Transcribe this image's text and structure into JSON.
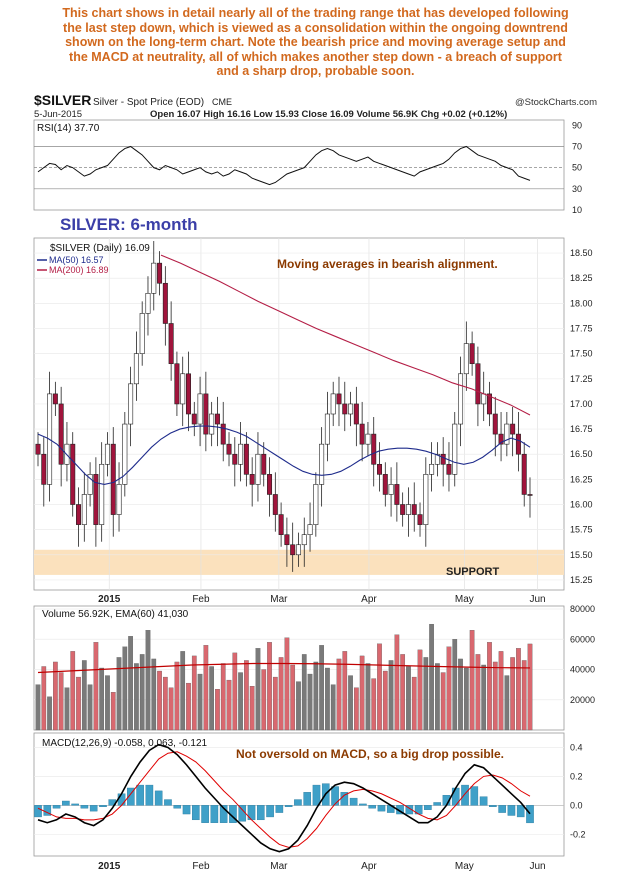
{
  "commentary": {
    "lines": [
      "This chart shows in detail nearly all of the trading range that has developed following",
      "the last step down, which is viewed as a consolidation within the ongoing downtrend",
      "shown on the long-term chart.  Note the bearish price and moving average setup and",
      "the MACD at neutrality, all of which makes another step down - a breach of support",
      "and a sharp drop, probable soon."
    ]
  },
  "header": {
    "symbol": "$SILVER",
    "name": "Silver - Spot Price (EOD)",
    "exchange": "CME",
    "source": "@StockCharts.com",
    "date": "5-Jun-2015",
    "quote": "Open 16.07  High 16.16  Low 15.93  Close 16.09  Volume 56.9K  Chg +0.02 (+0.12%)"
  },
  "annotations": {
    "title": "SILVER: 6-month",
    "ma_note": "Moving averages in bearish alignment.",
    "support": "SUPPORT",
    "macd_note": "Not oversold on MACD, so a big drop possible."
  },
  "colors": {
    "up": "#ffffff",
    "down": "#a0143c",
    "ma50": "#1f2c8c",
    "ma200": "#b41e46",
    "support": "#fbe1bd",
    "macd": "#000000",
    "signal": "#e00000",
    "histogram": "#3fa0c8",
    "vol_down": "#d9686f",
    "vol_up": "#7a7a7a",
    "ema": "#c00000",
    "title": "#3b3fa8",
    "note": "#8b3a00"
  },
  "chart_data": [
    {
      "type": "line",
      "title": "RSI(14) 37.70",
      "yticks": [
        10,
        30,
        50,
        70,
        90
      ],
      "ylim": [
        10,
        95
      ],
      "reference_lines": [
        30,
        50,
        70
      ],
      "series": [
        {
          "name": "RSI(14)",
          "values": [
            46,
            50,
            54,
            53,
            48,
            52,
            50,
            46,
            42,
            44,
            48,
            50,
            52,
            58,
            64,
            68,
            70,
            66,
            62,
            56,
            50,
            48,
            52,
            50,
            48,
            44,
            46,
            48,
            50,
            46,
            44,
            46,
            42,
            44,
            48,
            46,
            44,
            40,
            38,
            36,
            34,
            36,
            40,
            44,
            46,
            48,
            50,
            56,
            62,
            66,
            68,
            66,
            62,
            60,
            58,
            56,
            58,
            60,
            56,
            54,
            52,
            50,
            48,
            46,
            44,
            42,
            46,
            48,
            50,
            52,
            54,
            58,
            64,
            68,
            70,
            66,
            62,
            60,
            58,
            56,
            52,
            50,
            48,
            42,
            40,
            38
          ]
        }
      ]
    },
    {
      "type": "candlestick",
      "title": "$SILVER (Daily) 16.09",
      "x_labels": [
        "2015",
        "Feb",
        "Mar",
        "Apr",
        "May",
        "Jun"
      ],
      "yticks": [
        15.25,
        15.5,
        15.75,
        16.0,
        16.25,
        16.5,
        16.75,
        17.0,
        17.25,
        17.5,
        17.75,
        18.0,
        18.25,
        18.5
      ],
      "ylim": [
        15.15,
        18.65
      ],
      "close": [
        16.5,
        16.2,
        17.1,
        17.0,
        16.4,
        16.6,
        16.0,
        15.8,
        16.1,
        16.3,
        15.8,
        16.4,
        16.6,
        15.9,
        16.2,
        16.8,
        17.2,
        17.5,
        17.9,
        18.1,
        18.4,
        18.2,
        17.8,
        17.4,
        17.0,
        17.3,
        16.9,
        16.8,
        17.1,
        16.7,
        16.9,
        16.8,
        16.6,
        16.5,
        16.4,
        16.6,
        16.3,
        16.2,
        16.5,
        16.3,
        16.1,
        15.9,
        15.7,
        15.6,
        15.5,
        15.6,
        15.7,
        15.8,
        16.2,
        16.6,
        16.9,
        17.1,
        17.0,
        16.9,
        17.0,
        16.8,
        16.6,
        16.7,
        16.4,
        16.3,
        16.1,
        16.2,
        16.0,
        15.9,
        16.0,
        15.9,
        15.8,
        16.3,
        16.4,
        16.5,
        16.4,
        16.3,
        16.8,
        17.3,
        17.6,
        17.4,
        17.0,
        17.1,
        16.9,
        16.7,
        16.6,
        16.8,
        16.7,
        16.5,
        16.1,
        16.09
      ],
      "ma50": [
        16.7,
        16.66,
        16.6,
        16.5,
        16.4,
        16.3,
        16.22,
        16.2,
        16.22,
        16.28,
        16.37,
        16.47,
        16.57,
        16.65,
        16.71,
        16.75,
        16.77,
        16.78,
        16.78,
        16.77,
        16.75,
        16.72,
        16.68,
        16.62,
        16.56,
        16.5,
        16.44,
        16.38,
        16.33,
        16.3,
        16.29,
        16.3,
        16.33,
        16.38,
        16.44,
        16.49,
        16.53,
        16.55,
        16.56,
        16.56,
        16.55,
        16.53,
        16.5,
        16.46,
        16.42,
        16.4,
        16.42,
        16.47,
        16.54,
        16.62,
        16.66,
        16.63,
        16.57
      ],
      "ma200": [
        18.48,
        18.4,
        18.31,
        18.22,
        18.12,
        18.02,
        17.93,
        17.84,
        17.75,
        17.67,
        17.59,
        17.51,
        17.43,
        17.36,
        17.29,
        17.21,
        17.15,
        17.07,
        16.99,
        16.89
      ],
      "support_band": [
        15.3,
        15.55
      ]
    },
    {
      "type": "bar",
      "title": "Volume 56.92K, EMA(60) 41,030",
      "yticks": [
        20000,
        40000,
        60000,
        80000
      ],
      "ylim": [
        0,
        82000
      ],
      "values": [
        30000,
        42000,
        22000,
        45000,
        38000,
        28000,
        52000,
        35000,
        46000,
        30000,
        58000,
        41000,
        36000,
        25000,
        48000,
        55000,
        62000,
        44000,
        50000,
        66000,
        47000,
        39000,
        35000,
        28000,
        45000,
        52000,
        31000,
        49000,
        37000,
        56000,
        42000,
        27000,
        44000,
        33000,
        51000,
        38000,
        46000,
        29000,
        54000,
        40000,
        58000,
        35000,
        48000,
        61000,
        43000,
        32000,
        50000,
        37000,
        45000,
        56000,
        41000,
        30000,
        47000,
        52000,
        36000,
        28000,
        49000,
        44000,
        34000,
        57000,
        39000,
        46000,
        63000,
        50000,
        42000,
        35000,
        53000,
        48000,
        70000,
        44000,
        38000,
        55000,
        60000,
        47000,
        41000,
        66000,
        50000,
        43000,
        58000,
        45000,
        52000,
        36000,
        48000,
        54000,
        46000,
        56920
      ],
      "ema60": [
        38000,
        39000,
        40000,
        41000,
        42000,
        43000,
        43500,
        44000,
        44000,
        43800,
        43500,
        43000,
        42500,
        42000,
        41600,
        41200,
        41030
      ]
    },
    {
      "type": "line",
      "title": "MACD(12,26,9) -0.058, 0.063, -0.121",
      "yticks": [
        -0.2,
        0.0,
        0.2,
        0.4
      ],
      "ylim": [
        -0.35,
        0.5
      ],
      "series": [
        {
          "name": "MACD",
          "values": [
            -0.1,
            -0.12,
            -0.1,
            -0.06,
            -0.08,
            -0.12,
            -0.14,
            -0.1,
            -0.02,
            0.08,
            0.2,
            0.3,
            0.38,
            0.42,
            0.4,
            0.35,
            0.28,
            0.2,
            0.12,
            0.05,
            -0.02,
            -0.08,
            -0.14,
            -0.2,
            -0.26,
            -0.3,
            -0.32,
            -0.3,
            -0.24,
            -0.14,
            -0.02,
            0.08,
            0.14,
            0.16,
            0.15,
            0.12,
            0.08,
            0.04,
            0.0,
            -0.04,
            -0.08,
            -0.12,
            -0.12,
            -0.08,
            0.0,
            0.12,
            0.22,
            0.28,
            0.26,
            0.2,
            0.14,
            0.08,
            0.02,
            -0.058
          ]
        },
        {
          "name": "Signal",
          "values": [
            -0.02,
            -0.05,
            -0.08,
            -0.09,
            -0.09,
            -0.1,
            -0.1,
            -0.09,
            -0.06,
            0.0,
            0.08,
            0.16,
            0.24,
            0.32,
            0.36,
            0.37,
            0.34,
            0.3,
            0.24,
            0.17,
            0.1,
            0.04,
            -0.03,
            -0.1,
            -0.16,
            -0.22,
            -0.27,
            -0.29,
            -0.28,
            -0.23,
            -0.16,
            -0.07,
            0.01,
            0.07,
            0.1,
            0.11,
            0.1,
            0.08,
            0.05,
            0.02,
            -0.02,
            -0.06,
            -0.09,
            -0.1,
            -0.07,
            0.0,
            0.08,
            0.15,
            0.2,
            0.21,
            0.19,
            0.15,
            0.1,
            0.063
          ]
        },
        {
          "name": "Histogram",
          "values": [
            -0.08,
            -0.07,
            -0.02,
            0.03,
            0.01,
            -0.02,
            -0.04,
            -0.01,
            0.04,
            0.08,
            0.12,
            0.14,
            0.14,
            0.1,
            0.04,
            -0.02,
            -0.06,
            -0.1,
            -0.12,
            -0.12,
            -0.12,
            -0.12,
            -0.11,
            -0.1,
            -0.1,
            -0.08,
            -0.05,
            -0.01,
            0.04,
            0.09,
            0.14,
            0.15,
            0.13,
            0.09,
            0.05,
            0.01,
            -0.02,
            -0.04,
            -0.05,
            -0.06,
            -0.06,
            -0.06,
            -0.03,
            0.02,
            0.07,
            0.12,
            0.14,
            0.13,
            0.06,
            -0.01,
            -0.05,
            -0.07,
            -0.08,
            -0.121
          ]
        }
      ]
    }
  ]
}
